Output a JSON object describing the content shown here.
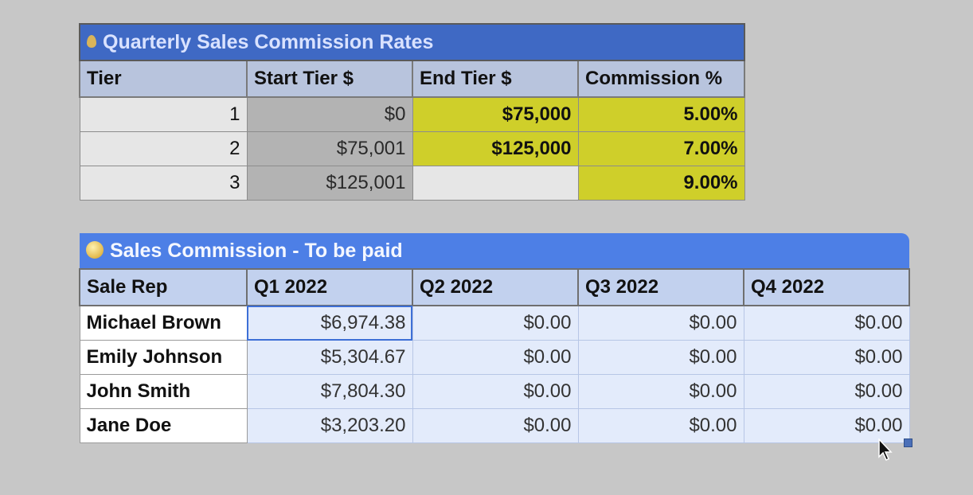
{
  "rates_table": {
    "title": "Quarterly Sales Commission Rates",
    "title_icon": "drop-icon",
    "headers": [
      "Tier",
      "Start Tier $",
      "End Tier $",
      "Commission %"
    ],
    "rows": [
      {
        "tier": "1",
        "start": "$0",
        "end": "$75,000",
        "commission": "5.00%"
      },
      {
        "tier": "2",
        "start": "$75,001",
        "end": "$125,000",
        "commission": "7.00%"
      },
      {
        "tier": "3",
        "start": "$125,001",
        "end": "",
        "commission": "9.00%"
      }
    ],
    "colors": {
      "title_bg": "#3f69c4",
      "header_bg": "#b8c4dd",
      "highlight": "#cfcf2a",
      "start_bg": "#b3b3b3"
    }
  },
  "payout_table": {
    "title": "Sales Commission - To be paid",
    "title_icon": "coin-icon",
    "headers": [
      "Sale Rep",
      "Q1 2022",
      "Q2 2022",
      "Q3 2022",
      "Q4 2022"
    ],
    "rows": [
      {
        "rep": "Michael Brown",
        "q1": "$6,974.38",
        "q2": "$0.00",
        "q3": "$0.00",
        "q4": "$0.00"
      },
      {
        "rep": "Emily Johnson",
        "q1": "$5,304.67",
        "q2": "$0.00",
        "q3": "$0.00",
        "q4": "$0.00"
      },
      {
        "rep": "John Smith",
        "q1": "$7,804.30",
        "q2": "$0.00",
        "q3": "$0.00",
        "q4": "$0.00"
      },
      {
        "rep": "Jane Doe",
        "q1": "$3,203.20",
        "q2": "$0.00",
        "q3": "$0.00",
        "q4": "$0.00"
      }
    ],
    "colors": {
      "title_bg": "#4d7fe6",
      "header_bg": "#c2d1ee",
      "selection_bg": "#e3ebfb",
      "selection_border": "#3d6fd6"
    }
  },
  "cursor_icon": "arrow-cursor-icon"
}
